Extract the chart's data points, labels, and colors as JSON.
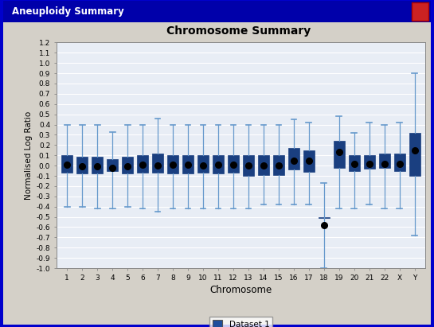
{
  "title": "Chromosome Summary",
  "xlabel": "Chromosome",
  "ylabel": "Normalised Log Ratio",
  "legend_label": "Dataset 1",
  "window_title": "Aneuploidy Summary",
  "box_color": "#1F4E9C",
  "box_edge_color": "#1A3F80",
  "whisker_color": "#6699CC",
  "mean_color": "#000000",
  "plot_bg": "#E8EDF5",
  "window_bg": "#D4D0C8",
  "titlebar_color": "#0000AA",
  "titlebar_text_color": "#FFFFFF",
  "border_color": "#0000CC",
  "grid_color": "#FFFFFF",
  "ylim": [
    -1.0,
    1.2
  ],
  "yticks": [
    -1.0,
    -0.9,
    -0.8,
    -0.7,
    -0.6,
    -0.5,
    -0.4,
    -0.3,
    -0.2,
    -0.1,
    0.0,
    0.1,
    0.2,
    0.3,
    0.4,
    0.5,
    0.6,
    0.7,
    0.8,
    0.9,
    1.0,
    1.1,
    1.2
  ],
  "chromosomes": [
    "1",
    "2",
    "3",
    "4",
    "5",
    "6",
    "7",
    "8",
    "9",
    "10",
    "11",
    "12",
    "13",
    "14",
    "15",
    "16",
    "17",
    "18",
    "19",
    "20",
    "21",
    "22",
    "X",
    "Y"
  ],
  "whislo": [
    -0.4,
    -0.4,
    -0.42,
    -0.42,
    -0.4,
    -0.42,
    -0.45,
    -0.42,
    -0.42,
    -0.42,
    -0.42,
    -0.42,
    -0.42,
    -0.38,
    -0.38,
    -0.38,
    -0.38,
    -1.0,
    -0.42,
    -0.42,
    -0.38,
    -0.42,
    -0.42,
    -0.68
  ],
  "q1": [
    -0.07,
    -0.08,
    -0.08,
    -0.05,
    -0.08,
    -0.07,
    -0.07,
    -0.08,
    -0.08,
    -0.07,
    -0.08,
    -0.07,
    -0.1,
    -0.09,
    -0.09,
    -0.04,
    -0.06,
    -0.51,
    -0.02,
    -0.05,
    -0.03,
    -0.02,
    -0.05,
    -0.1
  ],
  "med": [
    0.01,
    -0.01,
    -0.01,
    -0.02,
    -0.01,
    0.01,
    0.0,
    0.01,
    0.01,
    0.0,
    0.01,
    0.01,
    0.0,
    0.0,
    0.0,
    0.05,
    0.05,
    -0.58,
    0.13,
    0.02,
    0.02,
    0.02,
    0.02,
    0.15
  ],
  "mean": [
    0.01,
    -0.01,
    -0.01,
    -0.02,
    -0.01,
    0.01,
    0.0,
    0.01,
    0.01,
    0.0,
    0.01,
    0.01,
    0.0,
    0.0,
    0.0,
    0.05,
    0.05,
    -0.58,
    0.13,
    0.02,
    0.02,
    0.02,
    0.02,
    0.15
  ],
  "q3": [
    0.1,
    0.09,
    0.09,
    0.06,
    0.09,
    0.1,
    0.12,
    0.1,
    0.1,
    0.1,
    0.1,
    0.1,
    0.1,
    0.1,
    0.1,
    0.17,
    0.15,
    -0.5,
    0.24,
    0.1,
    0.1,
    0.12,
    0.12,
    0.32
  ],
  "whishi": [
    0.4,
    0.4,
    0.4,
    0.33,
    0.4,
    0.4,
    0.46,
    0.4,
    0.4,
    0.4,
    0.4,
    0.4,
    0.4,
    0.4,
    0.4,
    0.45,
    0.42,
    -0.17,
    0.48,
    0.32,
    0.42,
    0.4,
    0.42,
    0.9
  ]
}
